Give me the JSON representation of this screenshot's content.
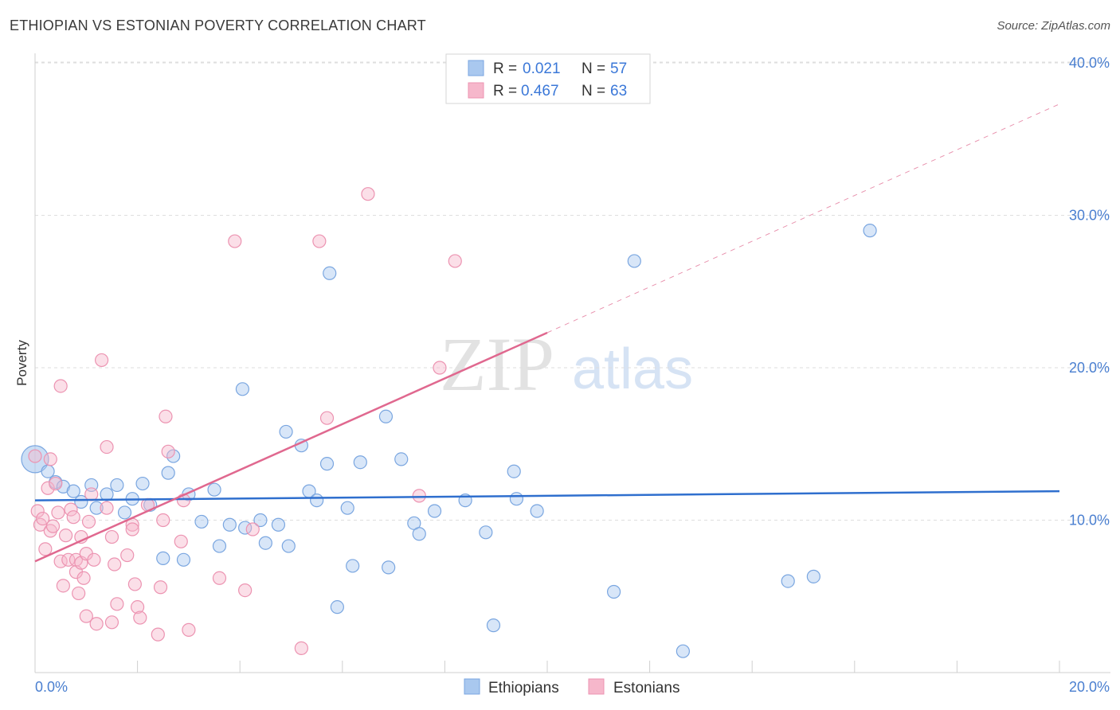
{
  "title": "ETHIOPIAN VS ESTONIAN POVERTY CORRELATION CHART",
  "source": "Source: ZipAtlas.com",
  "watermark": {
    "zip": "ZIP",
    "atlas": "atlas"
  },
  "colors": {
    "blue_fill": "#a9c8ef",
    "blue_stroke": "#7aa6e0",
    "blue_line": "#2f6fce",
    "pink_fill": "#f6b7cb",
    "pink_stroke": "#ec93b1",
    "pink_line": "#e0688f",
    "tick_label": "#4a7fd0",
    "grid": "#dedede"
  },
  "legend": {
    "rows": [
      {
        "r_label": "R =",
        "r_value": "0.021",
        "n_label": "N =",
        "n_value": "57"
      },
      {
        "r_label": "R =",
        "r_value": "0.467",
        "n_label": "N =",
        "n_value": "63"
      }
    ]
  },
  "bottom_legend": {
    "series_a": "Ethiopians",
    "series_b": "Estonians"
  },
  "chart_data": {
    "type": "scatter",
    "title": "ETHIOPIAN VS ESTONIAN POVERTY CORRELATION CHART",
    "xlabel": "",
    "ylabel": "Poverty",
    "xlim": [
      0,
      20
    ],
    "ylim": [
      0,
      40
    ],
    "x_tick_labels": [
      "0.0%",
      "20.0%"
    ],
    "y_ticks": [
      10,
      20,
      30,
      40
    ],
    "y_tick_labels": [
      "10.0%",
      "20.0%",
      "30.0%",
      "40.0%"
    ],
    "grid": true,
    "legend_position": "top-center",
    "series": [
      {
        "name": "Ethiopians",
        "color": "#a9c8ef",
        "trend": {
          "x": [
            0,
            20
          ],
          "y": [
            11.3,
            11.9
          ]
        },
        "points": [
          [
            0.0,
            14.0
          ],
          [
            0.25,
            13.2
          ],
          [
            0.4,
            12.5
          ],
          [
            0.55,
            12.2
          ],
          [
            0.75,
            11.9
          ],
          [
            0.9,
            11.2
          ],
          [
            1.1,
            12.3
          ],
          [
            1.2,
            10.8
          ],
          [
            1.4,
            11.7
          ],
          [
            1.6,
            12.3
          ],
          [
            1.75,
            10.5
          ],
          [
            1.9,
            11.4
          ],
          [
            2.1,
            12.4
          ],
          [
            2.25,
            11.0
          ],
          [
            2.5,
            7.5
          ],
          [
            2.6,
            13.1
          ],
          [
            2.7,
            14.2
          ],
          [
            2.9,
            7.4
          ],
          [
            3.0,
            11.7
          ],
          [
            3.25,
            9.9
          ],
          [
            3.5,
            12.0
          ],
          [
            3.6,
            8.3
          ],
          [
            3.8,
            9.7
          ],
          [
            4.05,
            18.6
          ],
          [
            4.1,
            9.5
          ],
          [
            4.4,
            10.0
          ],
          [
            4.5,
            8.5
          ],
          [
            4.75,
            9.7
          ],
          [
            4.9,
            15.8
          ],
          [
            4.95,
            8.3
          ],
          [
            5.2,
            14.9
          ],
          [
            5.35,
            11.9
          ],
          [
            5.5,
            11.3
          ],
          [
            5.7,
            13.7
          ],
          [
            5.75,
            26.2
          ],
          [
            5.9,
            4.3
          ],
          [
            6.1,
            10.8
          ],
          [
            6.2,
            7.0
          ],
          [
            6.35,
            13.8
          ],
          [
            6.9,
            6.9
          ],
          [
            6.85,
            16.8
          ],
          [
            7.15,
            14.0
          ],
          [
            7.4,
            9.8
          ],
          [
            7.5,
            9.1
          ],
          [
            7.8,
            10.6
          ],
          [
            8.4,
            11.3
          ],
          [
            8.8,
            9.2
          ],
          [
            8.95,
            3.1
          ],
          [
            9.35,
            13.2
          ],
          [
            9.4,
            11.4
          ],
          [
            9.8,
            10.6
          ],
          [
            11.3,
            5.3
          ],
          [
            11.7,
            27.0
          ],
          [
            12.65,
            1.4
          ],
          [
            14.7,
            6.0
          ],
          [
            15.2,
            6.3
          ],
          [
            16.3,
            29.0
          ]
        ]
      },
      {
        "name": "Estonians",
        "color": "#f6b7cb",
        "trend": {
          "x": [
            0,
            10.0
          ],
          "y": [
            7.3,
            22.3
          ]
        },
        "trend_dashed": {
          "x": [
            10.0,
            20.0
          ],
          "y": [
            22.3,
            37.3
          ]
        },
        "points": [
          [
            0.0,
            14.2
          ],
          [
            0.05,
            10.6
          ],
          [
            0.1,
            9.7
          ],
          [
            0.15,
            10.1
          ],
          [
            0.2,
            8.1
          ],
          [
            0.25,
            12.1
          ],
          [
            0.3,
            9.3
          ],
          [
            0.35,
            9.6
          ],
          [
            0.4,
            12.4
          ],
          [
            0.45,
            10.5
          ],
          [
            0.5,
            7.3
          ],
          [
            0.5,
            18.8
          ],
          [
            0.55,
            5.7
          ],
          [
            0.6,
            9.0
          ],
          [
            0.65,
            7.4
          ],
          [
            0.7,
            10.7
          ],
          [
            0.75,
            10.2
          ],
          [
            0.8,
            7.4
          ],
          [
            0.8,
            6.6
          ],
          [
            0.85,
            5.2
          ],
          [
            0.9,
            8.9
          ],
          [
            0.9,
            7.2
          ],
          [
            0.95,
            6.2
          ],
          [
            1.0,
            7.8
          ],
          [
            1.0,
            3.7
          ],
          [
            1.05,
            9.9
          ],
          [
            1.1,
            11.7
          ],
          [
            1.15,
            7.4
          ],
          [
            1.2,
            3.2
          ],
          [
            1.3,
            20.5
          ],
          [
            1.4,
            10.8
          ],
          [
            1.4,
            14.8
          ],
          [
            1.5,
            3.3
          ],
          [
            1.5,
            8.9
          ],
          [
            1.55,
            7.1
          ],
          [
            1.6,
            4.5
          ],
          [
            1.8,
            7.7
          ],
          [
            1.9,
            9.7
          ],
          [
            1.9,
            9.4
          ],
          [
            1.95,
            5.8
          ],
          [
            2.0,
            4.3
          ],
          [
            2.05,
            3.6
          ],
          [
            2.2,
            11.0
          ],
          [
            2.4,
            2.5
          ],
          [
            2.45,
            5.6
          ],
          [
            2.5,
            10.0
          ],
          [
            2.55,
            16.8
          ],
          [
            2.6,
            14.5
          ],
          [
            2.85,
            8.6
          ],
          [
            2.9,
            11.3
          ],
          [
            3.0,
            2.8
          ],
          [
            3.6,
            6.2
          ],
          [
            3.9,
            28.3
          ],
          [
            4.1,
            5.4
          ],
          [
            4.25,
            9.4
          ],
          [
            5.2,
            1.6
          ],
          [
            5.55,
            28.3
          ],
          [
            5.7,
            16.7
          ],
          [
            6.5,
            31.4
          ],
          [
            7.5,
            11.6
          ],
          [
            7.9,
            20.0
          ],
          [
            8.2,
            27.0
          ],
          [
            0.3,
            14.0
          ]
        ]
      }
    ]
  }
}
